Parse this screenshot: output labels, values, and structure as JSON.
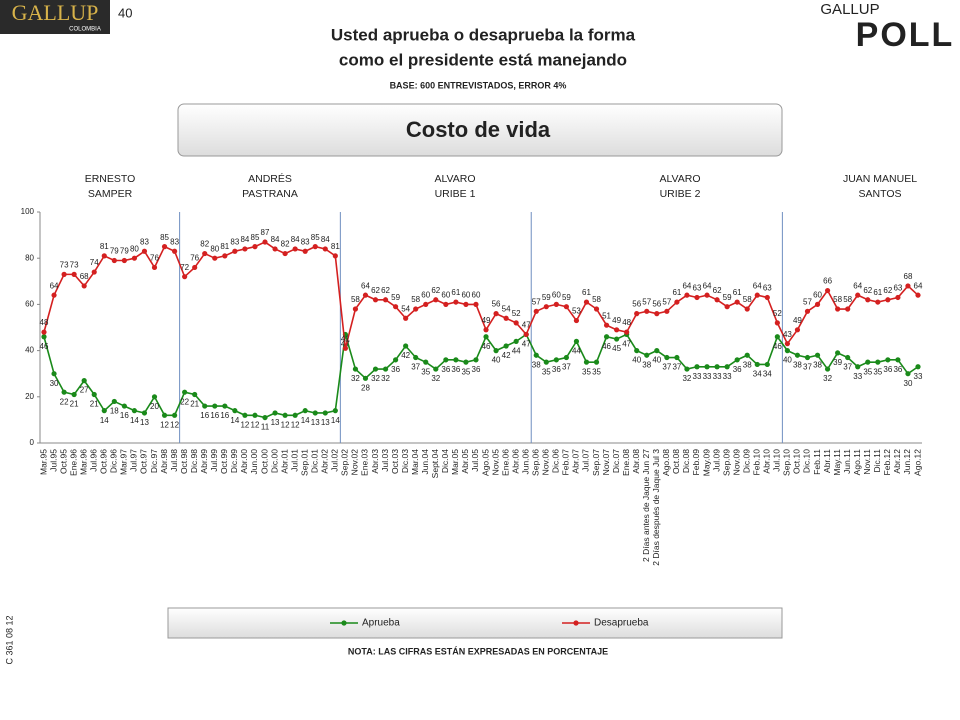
{
  "header": {
    "logo": "GALLUP",
    "logo_sub": "COLOMBIA",
    "page": "40",
    "poll_logo_top": "GALLUP",
    "poll_logo": "POLL"
  },
  "side_code": "C 361 08 12",
  "chart_data": {
    "type": "line",
    "title": [
      "Usted aprueba o desaprueba la forma",
      "como el presidente está manejando"
    ],
    "subtitle": "BASE: 600 ENTREVISTADOS, ERROR 4%",
    "topic": "Costo de vida",
    "note": "NOTA: LAS CIFRAS ESTÁN EXPRESADAS EN PORCENTAJE",
    "eras": [
      [
        "ERNESTO",
        "SAMPER"
      ],
      [
        "ANDRÉS",
        "PASTRANA"
      ],
      [
        "ALVARO",
        "URIBE 1"
      ],
      [
        "ALVARO",
        "URIBE 2"
      ],
      [
        "JUAN MANUEL",
        "SANTOS"
      ]
    ],
    "categories": [
      "Mar.95",
      "Jul.95",
      "Oct.95",
      "Ene.96",
      "Mar.96",
      "Jul.96",
      "Oct.96",
      "Dic.96",
      "Mar.97",
      "Jul.97",
      "Oct.97",
      "Dic.97",
      "Abr.98",
      "Jul.98",
      "Oct.98",
      "Dic.98",
      "Abr.99",
      "Jul.99",
      "Oct.99",
      "Dic.99",
      "Abr.00",
      "Jun.00",
      "Oct.00",
      "Dic.00",
      "Abr.01",
      "Jul.01",
      "Sep.01",
      "Dic.01",
      "Abr.02",
      "Jul.02",
      "Sep.02",
      "Nov.02",
      "Ene.03",
      "Abr.03",
      "Jul.03",
      "Oct.03",
      "Dic.03",
      "Mar.04",
      "Jun.04",
      "Sept.04",
      "Dic.04",
      "Mar.05",
      "Abr.05",
      "Jul.05",
      "Ago.05",
      "Nov.05",
      "Ene.06",
      "Abr.06",
      "Jun.06",
      "Sep.06",
      "Nov.06",
      "Dic.06",
      "Feb.07",
      "Abr.07",
      "Jul.07",
      "Sep.07",
      "Nov.07",
      "Dic.07",
      "Ene.08",
      "Abr.08",
      "2 Días antes de Jaque Jun 27",
      "2 Días después de Jaque Jul 3",
      "Ago.08",
      "Oct.08",
      "Dic.08",
      "Feb.09",
      "May.09",
      "Jul.09",
      "Sep.09",
      "Nov.09",
      "Dic.09",
      "Feb.10",
      "Abr.10",
      "Jul.10",
      "Sep.10",
      "Oct.10",
      "Dic.10",
      "Feb.11",
      "Abr.11",
      "May.11",
      "Jun.11",
      "Ago.11",
      "Nov.11",
      "Dic.11",
      "Feb.12",
      "Abr.12",
      "Jun.12",
      "Ago.12"
    ],
    "series": [
      {
        "name": "Aprueba",
        "color": "#1a8a1a",
        "values": [
          46,
          30,
          22,
          21,
          27,
          21,
          14,
          18,
          16,
          14,
          13,
          20,
          12,
          12,
          22,
          21,
          16,
          16,
          16,
          14,
          12,
          12,
          11,
          13,
          12,
          12,
          14,
          13,
          13,
          14,
          47,
          32,
          28,
          32,
          32,
          36,
          42,
          37,
          35,
          32,
          36,
          36,
          35,
          36,
          46,
          40,
          42,
          44,
          47,
          38,
          35,
          36,
          37,
          44,
          35,
          35,
          46,
          45,
          47,
          40,
          38,
          40,
          37,
          37,
          32,
          33,
          33,
          33,
          33,
          36,
          38,
          34,
          34,
          46,
          40,
          38,
          37,
          38,
          32,
          39,
          37,
          33,
          35,
          35,
          36,
          36,
          30,
          33
        ]
      },
      {
        "name": "Desaprueba",
        "color": "#d42020",
        "values": [
          48,
          64,
          73,
          73,
          68,
          74,
          81,
          79,
          79,
          80,
          83,
          76,
          85,
          83,
          72,
          76,
          82,
          80,
          81,
          83,
          84,
          85,
          87,
          84,
          82,
          84,
          83,
          85,
          84,
          81,
          41,
          58,
          64,
          62,
          62,
          59,
          54,
          58,
          60,
          62,
          60,
          61,
          60,
          60,
          49,
          56,
          54,
          52,
          47,
          57,
          59,
          60,
          59,
          53,
          61,
          58,
          51,
          49,
          48,
          56,
          57,
          56,
          57,
          61,
          64,
          63,
          64,
          62,
          59,
          61,
          58,
          64,
          63,
          52,
          43,
          49,
          57,
          60,
          66,
          58,
          58,
          64,
          62,
          61,
          62,
          63,
          68,
          64
        ]
      }
    ],
    "ylim": [
      0,
      100
    ],
    "yticks": [
      0,
      20,
      40,
      60,
      80,
      100
    ]
  }
}
